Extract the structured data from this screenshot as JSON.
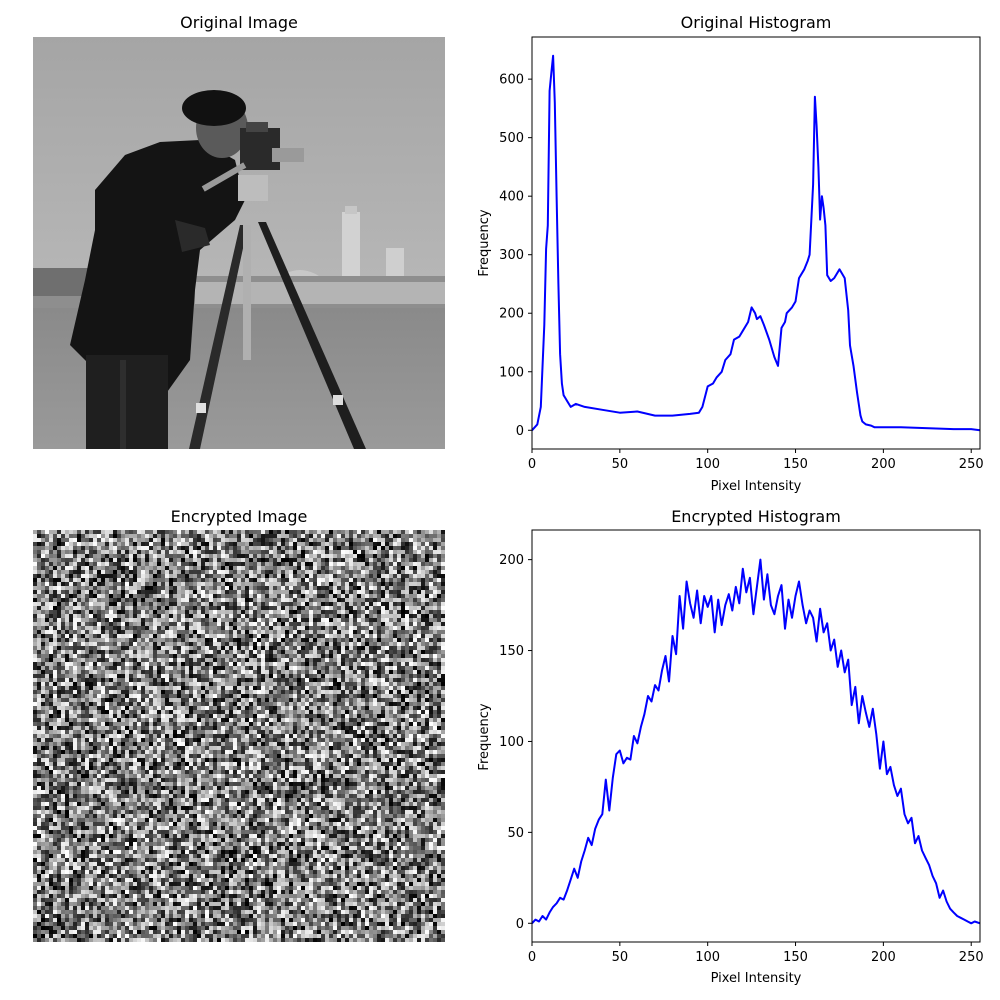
{
  "chart_data": [
    {
      "type": "image",
      "title": "Original Image",
      "content": "grayscale photograph: man with a camera on a tripod, field and buildings behind"
    },
    {
      "type": "line",
      "title": "Original Histogram",
      "xlabel": "Pixel Intensity",
      "ylabel": "Frequency",
      "xlim": [
        0,
        255
      ],
      "ylim": [
        -32,
        672
      ],
      "xticks": [
        0,
        50,
        100,
        150,
        200,
        250
      ],
      "yticks": [
        0,
        100,
        200,
        300,
        400,
        500,
        600
      ],
      "grid": false,
      "color": "#0000ff",
      "series": [
        {
          "x": [
            0,
            3,
            5,
            7,
            8,
            9,
            10,
            11,
            12,
            13,
            14,
            15,
            16,
            17,
            18,
            19,
            20,
            22,
            25,
            30,
            40,
            50,
            60,
            70,
            80,
            90,
            95,
            97,
            100,
            103,
            105,
            108,
            110,
            113,
            115,
            118,
            120,
            123,
            125,
            127,
            128,
            130,
            132,
            135,
            138,
            140,
            142,
            144,
            145,
            148,
            150,
            152,
            155,
            157,
            158,
            160,
            161,
            162,
            163,
            164,
            165,
            166,
            167,
            168,
            170,
            172,
            175,
            178,
            180,
            181,
            183,
            185,
            187,
            188,
            190,
            193,
            195,
            200,
            210,
            220,
            230,
            240,
            250,
            255
          ],
          "y": [
            0,
            10,
            40,
            180,
            310,
            350,
            580,
            610,
            640,
            560,
            400,
            250,
            130,
            80,
            60,
            55,
            50,
            40,
            45,
            40,
            35,
            30,
            32,
            25,
            25,
            28,
            30,
            40,
            75,
            80,
            90,
            100,
            120,
            130,
            155,
            160,
            170,
            185,
            210,
            200,
            190,
            195,
            180,
            155,
            125,
            110,
            175,
            185,
            200,
            210,
            220,
            260,
            275,
            290,
            300,
            420,
            570,
            520,
            450,
            360,
            400,
            380,
            350,
            265,
            255,
            260,
            275,
            260,
            205,
            145,
            110,
            65,
            25,
            15,
            10,
            8,
            5,
            5,
            5,
            4,
            3,
            2,
            2,
            0
          ]
        }
      ]
    },
    {
      "type": "image",
      "title": "Encrypted Image",
      "content": "uniform random grayscale noise"
    },
    {
      "type": "line",
      "title": "Encrypted Histogram",
      "xlabel": "Pixel Intensity",
      "ylabel": "Frequency",
      "xlim": [
        0,
        255
      ],
      "ylim": [
        -10.3,
        216.3
      ],
      "xticks": [
        0,
        50,
        100,
        150,
        200,
        250
      ],
      "yticks": [
        0,
        50,
        100,
        150,
        200
      ],
      "grid": false,
      "color": "#0000ff",
      "series": [
        {
          "x": [
            0,
            2,
            4,
            6,
            8,
            10,
            12,
            14,
            16,
            18,
            20,
            22,
            24,
            26,
            28,
            30,
            32,
            34,
            36,
            38,
            40,
            42,
            44,
            46,
            48,
            50,
            52,
            54,
            56,
            58,
            60,
            62,
            64,
            66,
            68,
            70,
            72,
            74,
            76,
            78,
            80,
            82,
            84,
            86,
            88,
            90,
            92,
            94,
            96,
            98,
            100,
            102,
            104,
            106,
            108,
            110,
            112,
            114,
            116,
            118,
            120,
            122,
            124,
            126,
            128,
            130,
            132,
            134,
            136,
            138,
            140,
            142,
            144,
            146,
            148,
            150,
            152,
            154,
            156,
            158,
            160,
            162,
            164,
            166,
            168,
            170,
            172,
            174,
            176,
            178,
            180,
            182,
            184,
            186,
            188,
            190,
            192,
            194,
            196,
            198,
            200,
            202,
            204,
            206,
            208,
            210,
            212,
            214,
            216,
            218,
            220,
            222,
            224,
            226,
            228,
            230,
            232,
            234,
            236,
            238,
            240,
            242,
            244,
            246,
            248,
            250,
            252,
            255
          ],
          "y": [
            0,
            2,
            1,
            4,
            2,
            6,
            9,
            11,
            14,
            13,
            18,
            24,
            30,
            25,
            34,
            40,
            47,
            43,
            52,
            57,
            60,
            79,
            62,
            80,
            93,
            95,
            88,
            91,
            90,
            103,
            99,
            108,
            115,
            125,
            122,
            131,
            128,
            139,
            147,
            133,
            158,
            148,
            180,
            162,
            188,
            176,
            168,
            183,
            165,
            180,
            174,
            180,
            160,
            178,
            164,
            175,
            181,
            172,
            185,
            176,
            195,
            182,
            190,
            170,
            185,
            200,
            178,
            192,
            175,
            170,
            180,
            186,
            162,
            178,
            168,
            180,
            188,
            175,
            165,
            172,
            168,
            155,
            173,
            160,
            165,
            150,
            156,
            141,
            150,
            138,
            145,
            120,
            130,
            110,
            125,
            116,
            108,
            118,
            104,
            85,
            100,
            82,
            86,
            76,
            70,
            74,
            60,
            55,
            58,
            44,
            48,
            40,
            36,
            32,
            26,
            22,
            14,
            18,
            12,
            8,
            6,
            4,
            3,
            2,
            1,
            0,
            1,
            0
          ]
        }
      ]
    }
  ]
}
